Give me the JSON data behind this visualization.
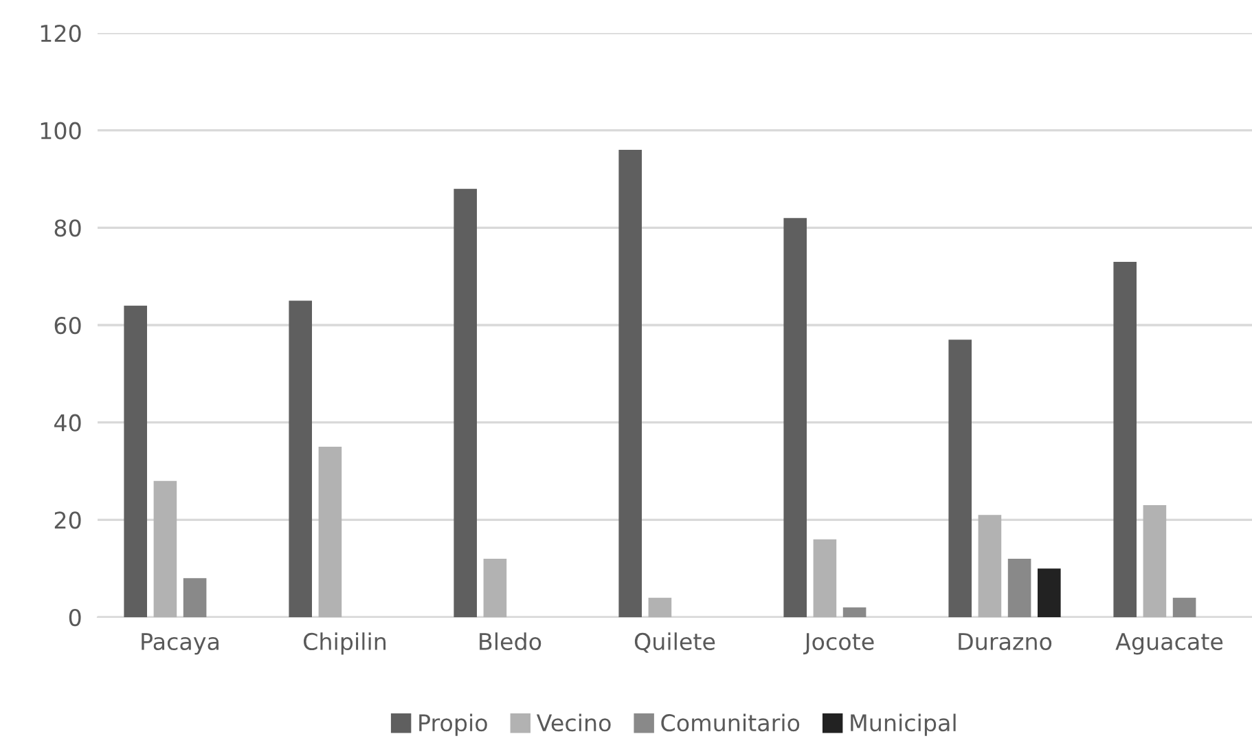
{
  "chart_data": {
    "type": "bar",
    "categories": [
      "Pacaya",
      "Chipilin",
      "Bledo",
      "Quilete",
      "Jocote",
      "Durazno",
      "Aguacate"
    ],
    "series": [
      {
        "name": "Propio",
        "color": "#5f5f5f",
        "values": [
          64,
          65,
          88,
          96,
          82,
          57,
          73
        ]
      },
      {
        "name": "Vecino",
        "color": "#b2b2b2",
        "values": [
          28,
          35,
          12,
          4,
          16,
          21,
          23
        ]
      },
      {
        "name": "Comunitario",
        "color": "#898989",
        "values": [
          8,
          null,
          null,
          null,
          2,
          12,
          4
        ]
      },
      {
        "name": "Municipal",
        "color": "#222222",
        "values": [
          null,
          null,
          null,
          null,
          null,
          10,
          null
        ]
      }
    ],
    "ylim": [
      0,
      120
    ],
    "yticks": [
      0,
      20,
      40,
      60,
      80,
      100,
      120
    ],
    "grid": "y",
    "legend": "bottom"
  }
}
